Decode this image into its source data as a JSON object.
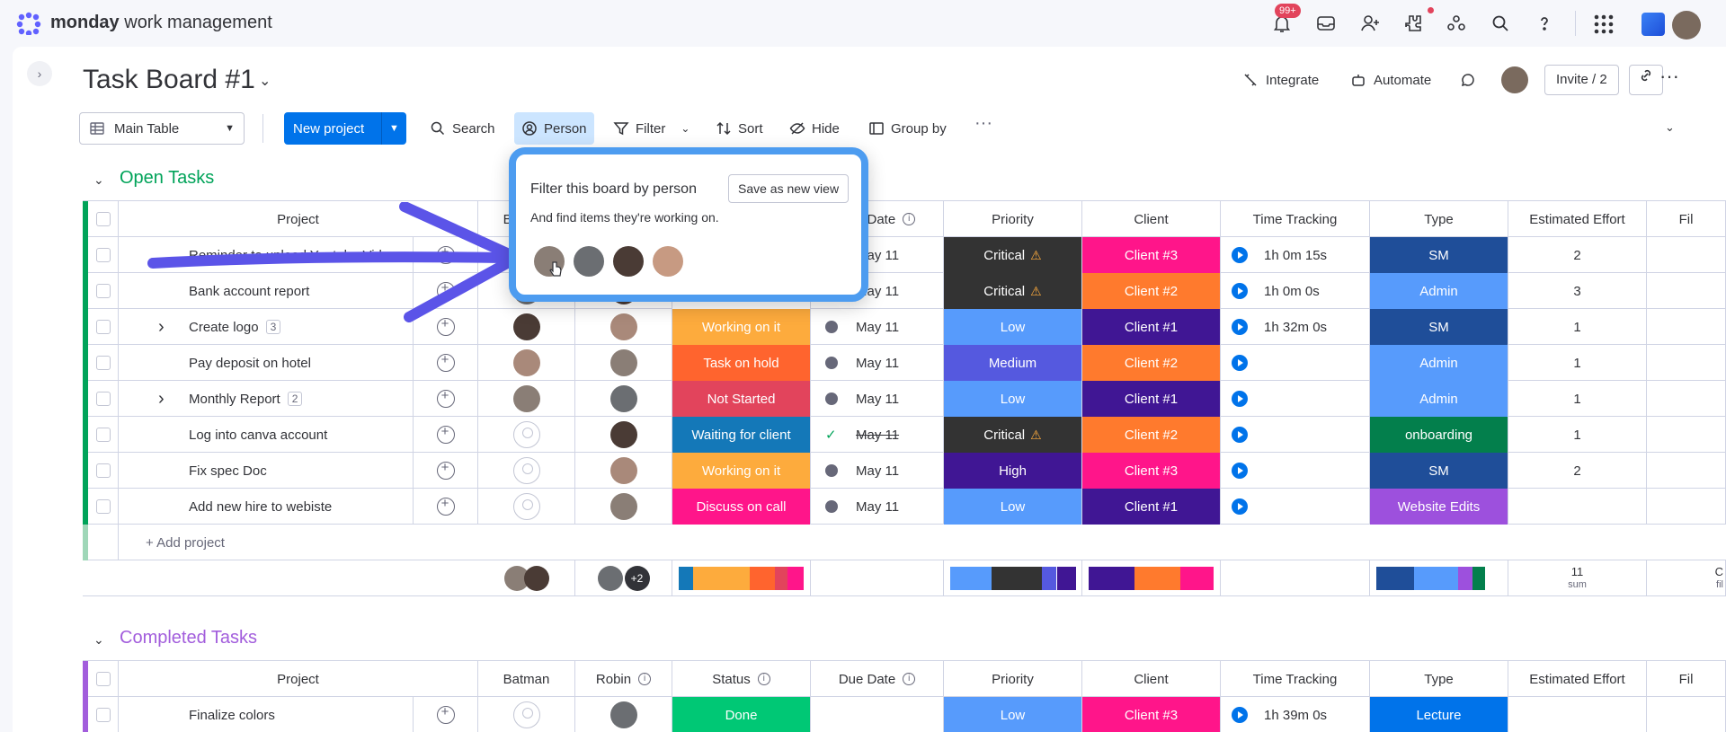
{
  "app": {
    "brand_bold": "monday",
    "brand_rest": " work management",
    "notifications_count": "99+"
  },
  "board": {
    "title": "Task Board #1",
    "integrate": "Integrate",
    "automate": "Automate",
    "invite": "Invite / 2"
  },
  "toolbar": {
    "main_table": "Main Table",
    "new_project": "New project",
    "search": "Search",
    "person": "Person",
    "filter": "Filter",
    "sort": "Sort",
    "hide": "Hide",
    "group_by": "Group by"
  },
  "popup": {
    "title": "Filter this board by person",
    "save": "Save as new view",
    "subtitle": "And find items they're working on."
  },
  "columns": {
    "project": "Project",
    "batman": "Batman",
    "robin": "Robin",
    "status": "Status",
    "due_date": "Due Date",
    "priority": "Priority",
    "client": "Client",
    "time_tracking": "Time Tracking",
    "type": "Type",
    "effort": "Estimated Effort",
    "files": "Fil"
  },
  "open_group": {
    "title": "Open Tasks",
    "color": "#00a359",
    "add_label": "+ Add project",
    "sum_value": "11",
    "sum_label": "sum",
    "files_sum": "C",
    "files_label": "fil",
    "robin_more": "+2",
    "rows": [
      {
        "project": "Reminder to upload Youtube Video",
        "status": "",
        "status_color": "#ffffff",
        "due": "May 11",
        "priority": "Critical",
        "priority_color": "#333333",
        "priority_warn": "⚠",
        "client": "Client #3",
        "client_color": "#ff158a",
        "time": "1h 0m 15s",
        "type": "SM",
        "type_color": "#1f4e99",
        "effort": "2"
      },
      {
        "project": "Bank account report",
        "status": "",
        "status_color": "#ffffff",
        "due": "May 11",
        "priority": "Critical",
        "priority_color": "#333333",
        "priority_warn": "⚠",
        "client": "Client #2",
        "client_color": "#ff7a2d",
        "time": "1h 0m 0s",
        "type": "Admin",
        "type_color": "#579bfc",
        "effort": "3"
      },
      {
        "project": "Create logo",
        "subitems": "3",
        "status": "Working on it",
        "status_color": "#fdab3d",
        "due": "May 11",
        "priority": "Low",
        "priority_color": "#579bfc",
        "priority_warn": "",
        "client": "Client #1",
        "client_color": "#401694",
        "time": "1h 32m 0s",
        "type": "SM",
        "type_color": "#1f4e99",
        "effort": "1"
      },
      {
        "project": "Pay deposit on hotel",
        "status": "Task on hold",
        "status_color": "#ff642e",
        "due": "May 11",
        "priority": "Medium",
        "priority_color": "#5559df",
        "priority_warn": "",
        "client": "Client #2",
        "client_color": "#ff7a2d",
        "time": "",
        "type": "Admin",
        "type_color": "#579bfc",
        "effort": "1"
      },
      {
        "project": "Monthly Report",
        "subitems": "2",
        "status": "Not Started",
        "status_color": "#e2445c",
        "due": "May 11",
        "priority": "Low",
        "priority_color": "#579bfc",
        "priority_warn": "",
        "client": "Client #1",
        "client_color": "#401694",
        "time": "",
        "type": "Admin",
        "type_color": "#579bfc",
        "effort": "1"
      },
      {
        "project": "Log into canva account",
        "status": "Waiting for client",
        "status_color": "#1478b8",
        "due": "May 11",
        "due_done": true,
        "priority": "Critical",
        "priority_color": "#333333",
        "priority_warn": "⚠",
        "client": "Client #2",
        "client_color": "#ff7a2d",
        "time": "",
        "type": "onboarding",
        "type_color": "#037f4c",
        "effort": "1"
      },
      {
        "project": "Fix spec Doc",
        "status": "Working on it",
        "status_color": "#fdab3d",
        "due": "May 11",
        "priority": "High",
        "priority_color": "#401694",
        "priority_warn": "",
        "client": "Client #3",
        "client_color": "#ff158a",
        "time": "",
        "type": "SM",
        "type_color": "#1f4e99",
        "effort": "2"
      },
      {
        "project": "Add new hire to webiste",
        "status": "Discuss on call",
        "status_color": "#ff158a",
        "due": "May 11",
        "priority": "Low",
        "priority_color": "#579bfc",
        "priority_warn": "",
        "client": "Client #1",
        "client_color": "#401694",
        "time": "",
        "type": "Website Edits",
        "type_color": "#9d50dd",
        "effort": ""
      }
    ]
  },
  "completed_group": {
    "title": "Completed Tasks",
    "color": "#a25ddc",
    "rows": [
      {
        "project": "Finalize colors",
        "status": "Done",
        "status_color": "#00c875",
        "priority": "Low",
        "priority_color": "#579bfc",
        "client": "Client #3",
        "client_color": "#ff158a",
        "time": "1h 39m 0s",
        "type": "Lecture",
        "type_color": "#0073ea"
      }
    ]
  }
}
